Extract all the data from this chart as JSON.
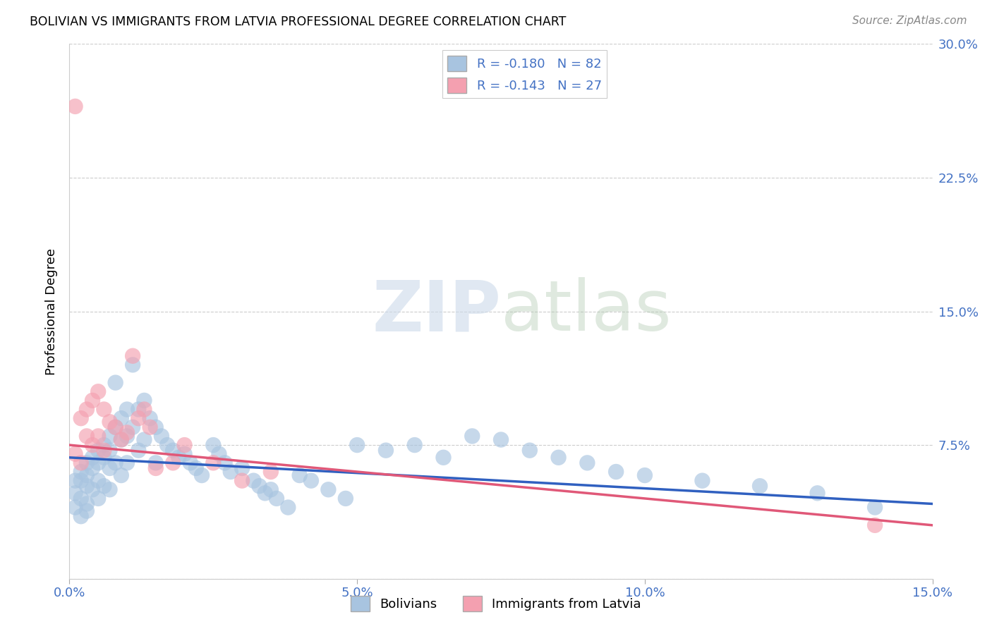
{
  "title": "BOLIVIAN VS IMMIGRANTS FROM LATVIA PROFESSIONAL DEGREE CORRELATION CHART",
  "source": "Source: ZipAtlas.com",
  "ylabel": "Professional Degree",
  "xlim": [
    0.0,
    0.15
  ],
  "ylim": [
    0.0,
    0.3
  ],
  "xtick_positions": [
    0.0,
    0.05,
    0.1,
    0.15
  ],
  "xtick_labels": [
    "0.0%",
    "5.0%",
    "10.0%",
    "15.0%"
  ],
  "ytick_positions": [
    0.0,
    0.075,
    0.15,
    0.225,
    0.3
  ],
  "ytick_labels": [
    "",
    "7.5%",
    "15.0%",
    "22.5%",
    "30.0%"
  ],
  "legend1_text": "R = -0.180   N = 82",
  "legend2_text": "R = -0.143   N = 27",
  "bolivians_color": "#a8c4e0",
  "latvia_color": "#f4a0b0",
  "line_blue": "#3060c0",
  "line_pink": "#e05878",
  "watermark_zip": "ZIP",
  "watermark_atlas": "atlas",
  "grid_color": "#cccccc",
  "tick_color": "#4472c4",
  "bolivians_x": [
    0.001,
    0.001,
    0.001,
    0.002,
    0.002,
    0.002,
    0.002,
    0.003,
    0.003,
    0.003,
    0.003,
    0.003,
    0.004,
    0.004,
    0.004,
    0.005,
    0.005,
    0.005,
    0.005,
    0.006,
    0.006,
    0.006,
    0.007,
    0.007,
    0.007,
    0.007,
    0.008,
    0.008,
    0.008,
    0.009,
    0.009,
    0.009,
    0.01,
    0.01,
    0.01,
    0.011,
    0.011,
    0.012,
    0.012,
    0.013,
    0.013,
    0.014,
    0.015,
    0.015,
    0.016,
    0.017,
    0.018,
    0.019,
    0.02,
    0.021,
    0.022,
    0.023,
    0.025,
    0.026,
    0.027,
    0.028,
    0.03,
    0.032,
    0.033,
    0.034,
    0.035,
    0.036,
    0.038,
    0.04,
    0.042,
    0.045,
    0.048,
    0.05,
    0.055,
    0.06,
    0.065,
    0.07,
    0.075,
    0.08,
    0.085,
    0.09,
    0.095,
    0.1,
    0.11,
    0.12,
    0.13,
    0.14
  ],
  "bolivians_y": [
    0.055,
    0.048,
    0.04,
    0.06,
    0.055,
    0.045,
    0.035,
    0.065,
    0.058,
    0.052,
    0.042,
    0.038,
    0.068,
    0.062,
    0.05,
    0.072,
    0.065,
    0.055,
    0.045,
    0.075,
    0.068,
    0.052,
    0.08,
    0.072,
    0.062,
    0.05,
    0.11,
    0.085,
    0.065,
    0.09,
    0.078,
    0.058,
    0.095,
    0.08,
    0.065,
    0.12,
    0.085,
    0.095,
    0.072,
    0.1,
    0.078,
    0.09,
    0.085,
    0.065,
    0.08,
    0.075,
    0.072,
    0.068,
    0.07,
    0.065,
    0.062,
    0.058,
    0.075,
    0.07,
    0.065,
    0.06,
    0.062,
    0.055,
    0.052,
    0.048,
    0.05,
    0.045,
    0.04,
    0.058,
    0.055,
    0.05,
    0.045,
    0.075,
    0.072,
    0.075,
    0.068,
    0.08,
    0.078,
    0.072,
    0.068,
    0.065,
    0.06,
    0.058,
    0.055,
    0.052,
    0.048,
    0.04
  ],
  "latvia_x": [
    0.001,
    0.001,
    0.002,
    0.002,
    0.003,
    0.003,
    0.004,
    0.004,
    0.005,
    0.005,
    0.006,
    0.006,
    0.007,
    0.008,
    0.009,
    0.01,
    0.011,
    0.012,
    0.013,
    0.014,
    0.015,
    0.018,
    0.02,
    0.025,
    0.03,
    0.035,
    0.14
  ],
  "latvia_y": [
    0.265,
    0.07,
    0.09,
    0.065,
    0.095,
    0.08,
    0.1,
    0.075,
    0.105,
    0.08,
    0.095,
    0.072,
    0.088,
    0.085,
    0.078,
    0.082,
    0.125,
    0.09,
    0.095,
    0.085,
    0.062,
    0.065,
    0.075,
    0.065,
    0.055,
    0.06,
    0.03
  ]
}
